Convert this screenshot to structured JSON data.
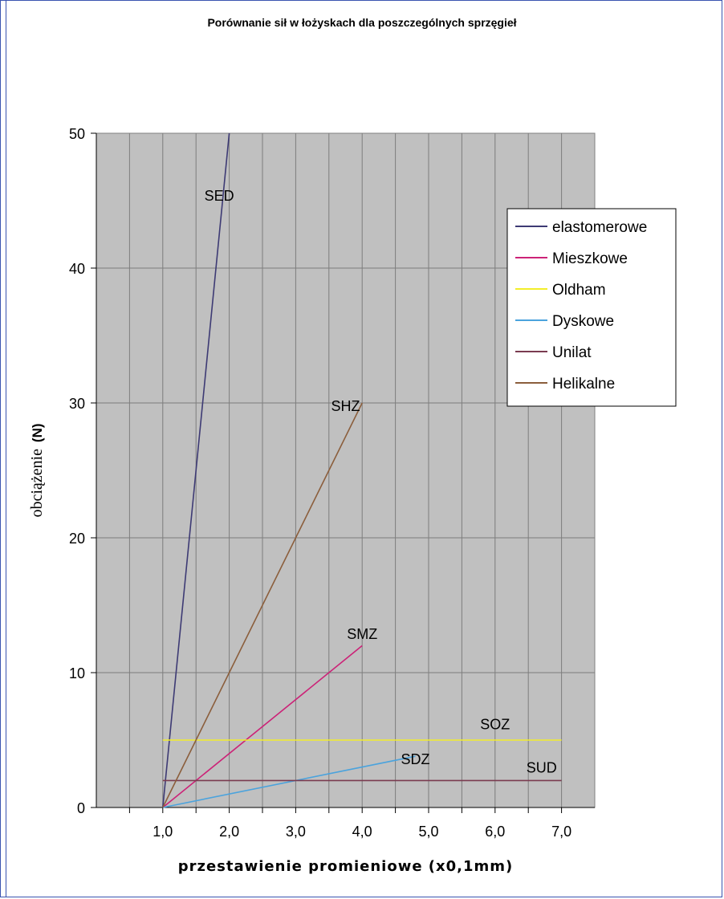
{
  "chart_data": {
    "type": "line",
    "title": "Porównanie sił w łożyskach dla poszczególnych sprzęgieł",
    "xlabel": "przestawienie promieniowe (x0,1mm)",
    "ylabel": "obciążenie",
    "ylabel_unit": "(N)",
    "xlim": [
      0.0,
      7.5
    ],
    "ylim": [
      0,
      50
    ],
    "x_ticks": [
      "1,0",
      "2,0",
      "3,0",
      "4,0",
      "5,0",
      "6,0",
      "7,0"
    ],
    "x_tick_values": [
      1,
      2,
      3,
      4,
      5,
      6,
      7
    ],
    "y_ticks": [
      "0",
      "10",
      "20",
      "30",
      "40",
      "50"
    ],
    "y_tick_values": [
      0,
      10,
      20,
      30,
      40,
      50
    ],
    "grid": true,
    "plot_background": "#c0c0c0",
    "legend_position": "right",
    "series": [
      {
        "name": "elastomerowe",
        "color": "#3d3a74",
        "x": [
          1.0,
          2.0
        ],
        "y": [
          0,
          50
        ],
        "label": "SED",
        "label_at": [
          1.85,
          45
        ]
      },
      {
        "name": "Mieszkowe",
        "color": "#cc2277",
        "x": [
          1.0,
          4.0
        ],
        "y": [
          0,
          12
        ],
        "label": "SMZ",
        "label_at": [
          4.0,
          12.5
        ]
      },
      {
        "name": "Oldham",
        "color": "#f2ee2a",
        "x": [
          1.0,
          7.0
        ],
        "y": [
          5,
          5
        ],
        "label": "SOZ",
        "label_at": [
          6.0,
          5.8
        ]
      },
      {
        "name": "Dyskowe",
        "color": "#4ba3dd",
        "x": [
          1.0,
          4.8
        ],
        "y": [
          0,
          3.8
        ],
        "label": "SDZ",
        "label_at": [
          4.8,
          3.2
        ]
      },
      {
        "name": "Unilat",
        "color": "#7a3b50",
        "x": [
          1.0,
          7.0
        ],
        "y": [
          2,
          2
        ],
        "label": "SUD",
        "label_at": [
          6.7,
          2.6
        ]
      },
      {
        "name": "Helikalne",
        "color": "#8b5e3c",
        "x": [
          1.0,
          4.0
        ],
        "y": [
          0,
          30
        ],
        "label": "SHZ",
        "label_at": [
          3.75,
          29.4
        ]
      }
    ]
  }
}
